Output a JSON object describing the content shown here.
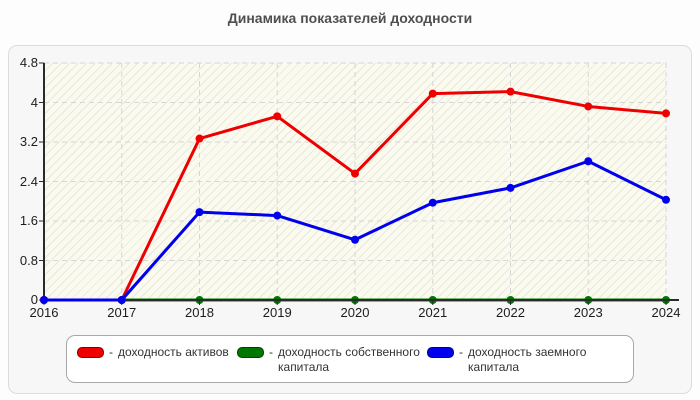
{
  "title": "Динамика показателей доходности",
  "chart_data": {
    "type": "line",
    "title": "Динамика показателей доходности",
    "categories": [
      "2016",
      "2017",
      "2018",
      "2019",
      "2020",
      "2021",
      "2022",
      "2023",
      "2024"
    ],
    "series": [
      {
        "name": "доходность активов",
        "color": "#ee0000",
        "values": [
          0,
          0,
          3.27,
          3.72,
          2.56,
          4.18,
          4.22,
          3.92,
          3.78
        ]
      },
      {
        "name": "доходность собственного капитала",
        "color": "#007700",
        "values": [
          0,
          0,
          0,
          0,
          0,
          0,
          0,
          0,
          0
        ]
      },
      {
        "name": "доходность заемного капитала",
        "color": "#0000ee",
        "values": [
          0,
          0,
          1.78,
          1.71,
          1.22,
          1.97,
          2.27,
          2.81,
          2.03
        ]
      }
    ],
    "xlabel": "",
    "ylabel": "",
    "ylim": [
      0,
      4.8
    ],
    "y_ticks": [
      0,
      0.8,
      1.6,
      2.4,
      3.2,
      4,
      4.8
    ],
    "grid": true,
    "grid_style": "dashed",
    "legend_position": "bottom"
  },
  "legend": {
    "entries": [
      {
        "prefix": "-",
        "label": "доходность активов",
        "color": "#ee0000"
      },
      {
        "prefix": "-",
        "label": "доходность собственного капитала",
        "color": "#007700"
      },
      {
        "prefix": "-",
        "label": "доходность заемного капитала",
        "color": "#0000ee"
      }
    ]
  }
}
